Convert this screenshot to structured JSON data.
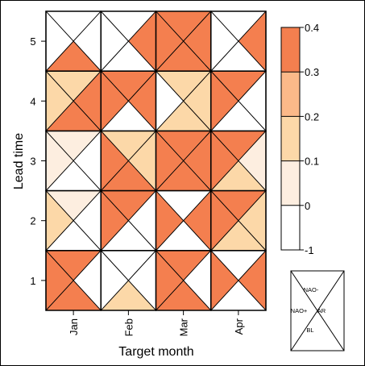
{
  "chart_data": {
    "type": "heatmap",
    "xlabel": "Target month",
    "ylabel": "Lead time",
    "x_categories": [
      "Jan",
      "Feb",
      "Mar",
      "Apr"
    ],
    "y_categories": [
      "1",
      "2",
      "3",
      "4",
      "5"
    ],
    "triangle_order": [
      "top",
      "right",
      "bottom",
      "left"
    ],
    "triangle_key": {
      "top": "NAO-",
      "right": "AR",
      "bottom": "BL",
      "left": "NAO+"
    },
    "colorbar": {
      "boundaries": [
        -1,
        0,
        0.1,
        0.2,
        0.3,
        0.4
      ],
      "tick_labels": [
        "-1",
        "0",
        "0.1",
        "0.2",
        "0.3",
        "0.4"
      ],
      "colors": [
        "#ffffff",
        "#fdeee0",
        "#fcd8a8",
        "#fbb989",
        "#f47f4f"
      ]
    },
    "cells": [
      {
        "lead": "1",
        "month": "Jan",
        "values": [
          0.35,
          -0.2,
          0.35,
          0.35
        ]
      },
      {
        "lead": "1",
        "month": "Feb",
        "values": [
          -0.3,
          -0.1,
          0.15,
          -0.2
        ]
      },
      {
        "lead": "1",
        "month": "Mar",
        "values": [
          0.35,
          -0.1,
          0.35,
          0.35
        ]
      },
      {
        "lead": "1",
        "month": "Apr",
        "values": [
          -0.3,
          0.35,
          -0.2,
          0.35
        ]
      },
      {
        "lead": "2",
        "month": "Jan",
        "values": [
          0.05,
          -0.2,
          -0.3,
          0.15
        ]
      },
      {
        "lead": "2",
        "month": "Feb",
        "values": [
          0.35,
          -0.1,
          -0.2,
          0.35
        ]
      },
      {
        "lead": "2",
        "month": "Mar",
        "values": [
          -0.2,
          0.35,
          -0.3,
          0.35
        ]
      },
      {
        "lead": "2",
        "month": "Apr",
        "values": [
          0.35,
          0.15,
          0.15,
          0.35
        ]
      },
      {
        "lead": "3",
        "month": "Jan",
        "values": [
          0.05,
          -0.2,
          -0.3,
          0.05
        ]
      },
      {
        "lead": "3",
        "month": "Feb",
        "values": [
          0.15,
          0.15,
          0.35,
          0.35
        ]
      },
      {
        "lead": "3",
        "month": "Mar",
        "values": [
          0.35,
          0.35,
          0.35,
          0.35
        ]
      },
      {
        "lead": "3",
        "month": "Apr",
        "values": [
          0.35,
          0.05,
          0.15,
          0.35
        ]
      },
      {
        "lead": "4",
        "month": "Jan",
        "values": [
          0.15,
          0.35,
          0.35,
          0.15
        ]
      },
      {
        "lead": "4",
        "month": "Feb",
        "values": [
          0.35,
          0.35,
          -0.2,
          0.35
        ]
      },
      {
        "lead": "4",
        "month": "Mar",
        "values": [
          0.15,
          0.15,
          0.15,
          -0.2
        ]
      },
      {
        "lead": "4",
        "month": "Apr",
        "values": [
          0.35,
          -0.2,
          -0.3,
          0.35
        ]
      },
      {
        "lead": "5",
        "month": "Jan",
        "values": [
          -0.3,
          -0.2,
          0.35,
          -0.1
        ]
      },
      {
        "lead": "5",
        "month": "Feb",
        "values": [
          -0.2,
          0.35,
          -0.3,
          -0.1
        ]
      },
      {
        "lead": "5",
        "month": "Mar",
        "values": [
          0.35,
          0.35,
          0.35,
          0.35
        ]
      },
      {
        "lead": "5",
        "month": "Apr",
        "values": [
          -0.3,
          0.35,
          -0.2,
          -0.1
        ]
      }
    ]
  }
}
